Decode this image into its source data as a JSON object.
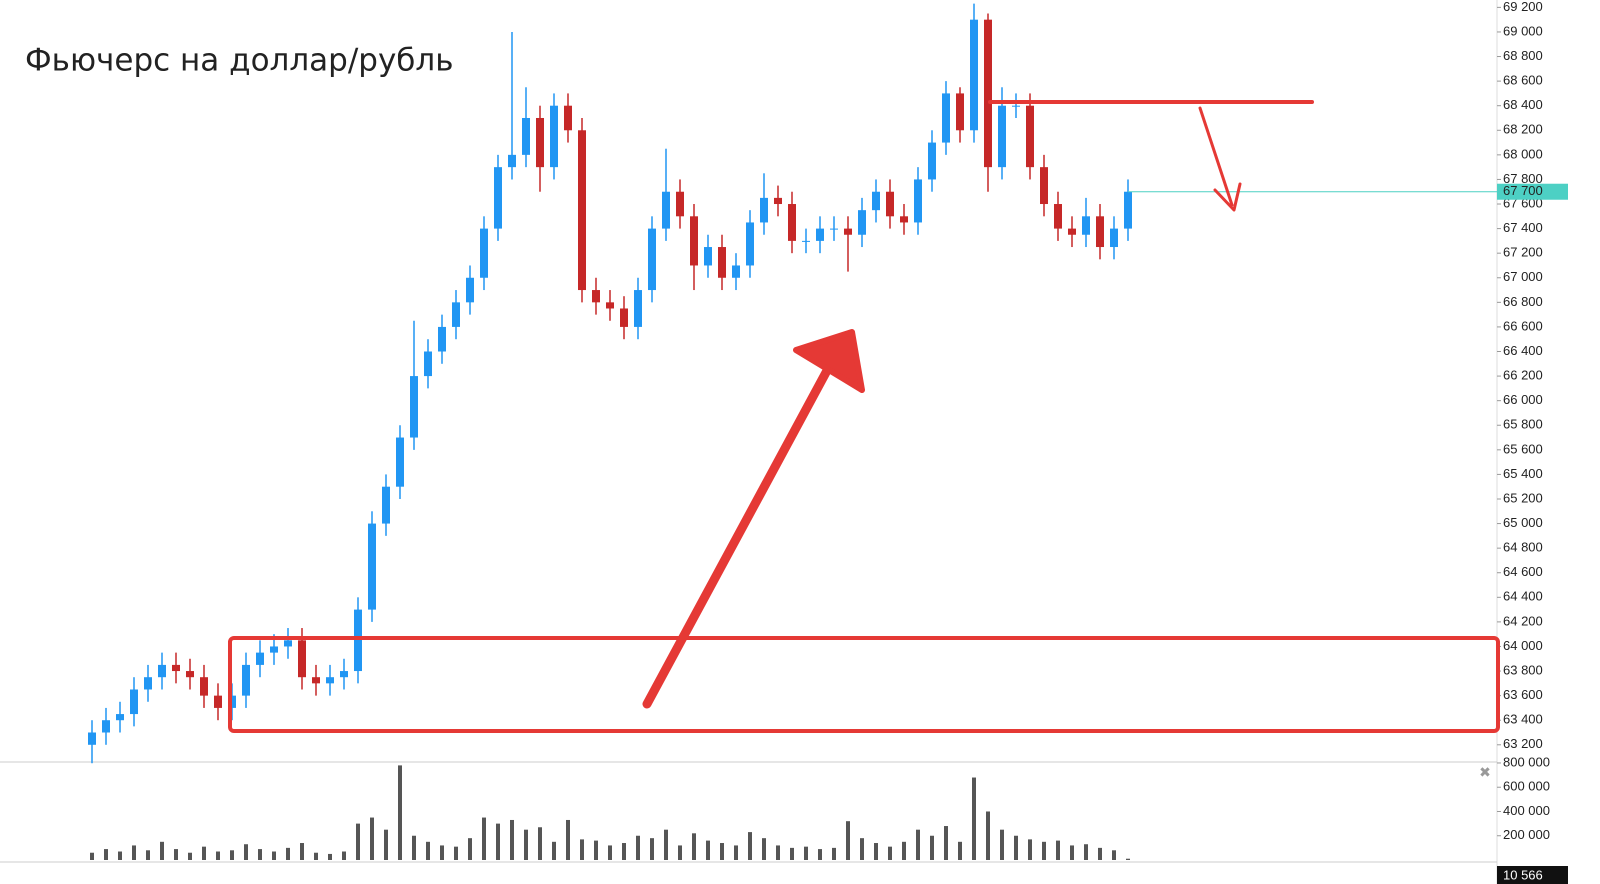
{
  "chart_data": {
    "type": "candlestick",
    "title": "Фьючерс на доллар/рубль",
    "categories": [
      null,
      null,
      null,
      null,
      null,
      null,
      null,
      null,
      null,
      null,
      null,
      null,
      null,
      null,
      null,
      null,
      null,
      null,
      null,
      null,
      null,
      null,
      null,
      null,
      null,
      null,
      null,
      null,
      null,
      null,
      null,
      null,
      null,
      null,
      null,
      null,
      null,
      null,
      null,
      null,
      null,
      null,
      null,
      null,
      null,
      null,
      null,
      null,
      null,
      null,
      null,
      null,
      null,
      null,
      null,
      null,
      null,
      null,
      null,
      null,
      null,
      null,
      null,
      null,
      null,
      null,
      null,
      null,
      null,
      null,
      null,
      null,
      null,
      null,
      null
    ],
    "open": [
      63200,
      63300,
      63400,
      63450,
      63650,
      63750,
      63850,
      63800,
      63750,
      63600,
      63500,
      63600,
      63850,
      63950,
      64000,
      64050,
      63750,
      63700,
      63750,
      63800,
      64300,
      65000,
      65300,
      65700,
      66200,
      66400,
      66600,
      66800,
      67000,
      67400,
      67900,
      68000,
      68300,
      67900,
      68400,
      68200,
      66900,
      66800,
      66750,
      66600,
      66900,
      67400,
      67700,
      67500,
      67100,
      67250,
      67000,
      67100,
      67450,
      67650,
      67600,
      67300,
      67300,
      67400,
      67400,
      67350,
      67550,
      67700,
      67500,
      67450,
      67800,
      68100,
      68500,
      68200,
      69100,
      67900,
      68400,
      68400,
      67900,
      67600,
      67400,
      67350,
      67500,
      67250,
      67400
    ],
    "high": [
      63400,
      63500,
      63550,
      63750,
      63850,
      63950,
      63950,
      63900,
      63850,
      63700,
      63700,
      63950,
      64050,
      64100,
      64150,
      64150,
      63850,
      63850,
      63900,
      64400,
      65100,
      65400,
      65800,
      66650,
      66500,
      66700,
      66900,
      67100,
      67500,
      68000,
      69000,
      68550,
      68400,
      68500,
      68500,
      68300,
      67000,
      66900,
      66850,
      67000,
      67500,
      68050,
      67800,
      67600,
      67350,
      67350,
      67200,
      67550,
      67850,
      67750,
      67700,
      67400,
      67500,
      67500,
      67500,
      67650,
      67800,
      67800,
      67600,
      67900,
      68200,
      68600,
      68550,
      69230,
      69150,
      68550,
      68500,
      68500,
      68000,
      67700,
      67500,
      67650,
      67600,
      67500,
      67800
    ],
    "low": [
      63050,
      63200,
      63300,
      63350,
      63550,
      63650,
      63700,
      63650,
      63500,
      63400,
      63400,
      63500,
      63750,
      63850,
      63900,
      63650,
      63600,
      63600,
      63650,
      63700,
      64200,
      64900,
      65200,
      65600,
      66100,
      66300,
      66500,
      66700,
      66900,
      67300,
      67800,
      67900,
      67700,
      67800,
      68100,
      66800,
      66700,
      66650,
      66500,
      66500,
      66800,
      67300,
      67400,
      66900,
      67000,
      66900,
      66900,
      67000,
      67350,
      67500,
      67200,
      67200,
      67200,
      67300,
      67050,
      67250,
      67450,
      67400,
      67350,
      67350,
      67700,
      68000,
      68100,
      68100,
      67700,
      67800,
      68300,
      67800,
      67500,
      67300,
      67250,
      67250,
      67150,
      67150,
      67300
    ],
    "close": [
      63300,
      63400,
      63450,
      63650,
      63750,
      63850,
      63800,
      63750,
      63600,
      63500,
      63600,
      63850,
      63950,
      64000,
      64050,
      63750,
      63700,
      63750,
      63800,
      64300,
      65000,
      65300,
      65700,
      66200,
      66400,
      66600,
      66800,
      67000,
      67400,
      67900,
      68000,
      68300,
      67900,
      68400,
      68200,
      66900,
      66800,
      66750,
      66600,
      66900,
      67400,
      67700,
      67500,
      67100,
      67250,
      67000,
      67100,
      67450,
      67650,
      67600,
      67300,
      67300,
      67400,
      67400,
      67350,
      67550,
      67700,
      67500,
      67450,
      67800,
      68100,
      68500,
      68200,
      69100,
      67900,
      68400,
      68400,
      67900,
      67600,
      67400,
      67350,
      67500,
      67250,
      67400,
      67700
    ],
    "volume": [
      60000,
      90000,
      70000,
      120000,
      80000,
      150000,
      90000,
      60000,
      110000,
      70000,
      80000,
      130000,
      90000,
      70000,
      100000,
      140000,
      60000,
      50000,
      70000,
      300000,
      350000,
      250000,
      780000,
      200000,
      150000,
      120000,
      110000,
      180000,
      350000,
      300000,
      330000,
      250000,
      270000,
      150000,
      330000,
      170000,
      160000,
      120000,
      140000,
      200000,
      180000,
      250000,
      120000,
      220000,
      160000,
      140000,
      120000,
      230000,
      180000,
      120000,
      100000,
      110000,
      90000,
      100000,
      320000,
      180000,
      140000,
      110000,
      150000,
      250000,
      200000,
      280000,
      150000,
      680000,
      400000,
      250000,
      200000,
      170000,
      150000,
      160000,
      120000,
      130000,
      100000,
      80000,
      10566
    ],
    "volume_value_labels": {
      "74": "10 566"
    },
    "up_color": "#2196f3",
    "down_color": "#c62828",
    "volume_color": "#555555",
    "last_price": {
      "value": 67700,
      "label": "67 700"
    },
    "last_price_color": "#4dd0c4",
    "ylim": [
      63060,
      69260
    ],
    "yticks": [
      {
        "value": 63200,
        "label": "63 200"
      },
      {
        "value": 63400,
        "label": "63 400"
      },
      {
        "value": 63600,
        "label": "63 600"
      },
      {
        "value": 63800,
        "label": "63 800"
      },
      {
        "value": 64000,
        "label": "64 000"
      },
      {
        "value": 64200,
        "label": "64 200"
      },
      {
        "value": 64400,
        "label": "64 400"
      },
      {
        "value": 64600,
        "label": "64 600"
      },
      {
        "value": 64800,
        "label": "64 800"
      },
      {
        "value": 65000,
        "label": "65 000"
      },
      {
        "value": 65200,
        "label": "65 200"
      },
      {
        "value": 65400,
        "label": "65 400"
      },
      {
        "value": 65600,
        "label": "65 600"
      },
      {
        "value": 65800,
        "label": "65 800"
      },
      {
        "value": 66000,
        "label": "66 000"
      },
      {
        "value": 66200,
        "label": "66 200"
      },
      {
        "value": 66400,
        "label": "66 400"
      },
      {
        "value": 66600,
        "label": "66 600"
      },
      {
        "value": 66800,
        "label": "66 800"
      },
      {
        "value": 67000,
        "label": "67 000"
      },
      {
        "value": 67200,
        "label": "67 200"
      },
      {
        "value": 67400,
        "label": "67 400"
      },
      {
        "value": 67600,
        "label": "67 600"
      },
      {
        "value": 67800,
        "label": "67 800"
      },
      {
        "value": 68000,
        "label": "68 000"
      },
      {
        "value": 68200,
        "label": "68 200"
      },
      {
        "value": 68400,
        "label": "68 400"
      },
      {
        "value": 68600,
        "label": "68 600"
      },
      {
        "value": 68800,
        "label": "68 800"
      },
      {
        "value": 69000,
        "label": "69 000"
      },
      {
        "value": 69200,
        "label": "69 200"
      }
    ],
    "volume_lim": [
      0,
      808000
    ],
    "volume_ticks": [
      {
        "value": 200000,
        "label": "200 000"
      },
      {
        "value": 400000,
        "label": "400 000"
      },
      {
        "value": 600000,
        "label": "600 000"
      },
      {
        "value": 800000,
        "label": "800 000"
      }
    ]
  }
}
